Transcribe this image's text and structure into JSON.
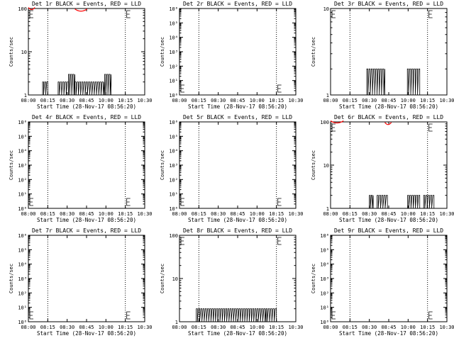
{
  "chart_data": [
    {
      "type": "line",
      "title": "Det 1r BLACK = Events, RED = LLD",
      "xlabel": "Start Time (28-Nov-17 08:56:20)",
      "ylabel": "Counts/sec",
      "y_scale": "log",
      "ylim": [
        1,
        100
      ],
      "y_ticks": [
        "1",
        "10",
        "100"
      ],
      "x_ticks": [
        "08:00",
        "08:15",
        "08:30",
        "08:45",
        "10:00",
        "10:15",
        "10:30"
      ],
      "vlines": [
        "08:15",
        "10:15"
      ],
      "series": [
        {
          "color": "#000000",
          "segments": [
            {
              "x": [
                "08:11",
                "08:15"
              ],
              "y": 2
            },
            {
              "x": [
                "08:23",
                "08:31"
              ],
              "y": 2
            },
            {
              "x": [
                "08:31",
                "08:36"
              ],
              "y": 3
            },
            {
              "x": [
                "08:36",
                "09:54"
              ],
              "y": 2
            },
            {
              "x": [
                "09:55",
                "10:04"
              ],
              "y": 3
            }
          ]
        },
        {
          "color": "#ff0000",
          "segments": [
            {
              "x": [
                "08:00",
                "08:05"
              ],
              "y": 98
            },
            {
              "x": [
                "08:36",
                "08:47"
              ],
              "y": 90
            }
          ]
        }
      ]
    },
    {
      "type": "line",
      "title": "Det 2r BLACK = Events, RED = LLD",
      "xlabel": "Start Time (28-Nov-17 08:56:20)",
      "ylabel": "Counts/sec",
      "y_scale": "log",
      "ylim": [
        1,
        1000000
      ],
      "y_ticks": [
        "10⁰",
        "10¹",
        "10²",
        "10³",
        "10⁴",
        "10⁵",
        "10⁶"
      ],
      "x_ticks": [
        "08:00",
        "08:15",
        "08:30",
        "08:45",
        "10:00",
        "10:15",
        "10:30"
      ],
      "vlines": [
        "08:15",
        "10:15"
      ],
      "series": []
    },
    {
      "type": "line",
      "title": "Det 3r BLACK = Events, RED = LLD",
      "xlabel": "Start Time (28-Nov-17 08:56:20)",
      "ylabel": "Counts/sec",
      "y_scale": "log",
      "ylim": [
        1,
        10
      ],
      "y_ticks": [
        "1",
        "10"
      ],
      "x_ticks": [
        "08:00",
        "08:15",
        "08:30",
        "08:45",
        "10:00",
        "10:15",
        "10:30"
      ],
      "vlines": [
        "08:15",
        "10:15"
      ],
      "series": [
        {
          "color": "#000000",
          "segments": [
            {
              "x": [
                "08:28",
                "08:42"
              ],
              "y": 2
            },
            {
              "x": [
                "09:57",
                "10:09"
              ],
              "y": 2
            }
          ]
        }
      ]
    },
    {
      "type": "line",
      "title": "Det 4r BLACK = Events, RED = LLD",
      "xlabel": "Start Time (28-Nov-17 08:56:20)",
      "ylabel": "Counts/sec",
      "y_scale": "log",
      "ylim": [
        1,
        1000000
      ],
      "y_ticks": [
        "10⁰",
        "10¹",
        "10²",
        "10³",
        "10⁴",
        "10⁵",
        "10⁶"
      ],
      "x_ticks": [
        "08:00",
        "08:15",
        "08:30",
        "08:45",
        "10:00",
        "10:15",
        "10:30"
      ],
      "vlines": [
        "08:15",
        "10:15"
      ],
      "series": []
    },
    {
      "type": "line",
      "title": "Det 5r BLACK = Events, RED = LLD",
      "xlabel": "Start Time (28-Nov-17 08:56:20)",
      "ylabel": "Counts/sec",
      "y_scale": "log",
      "ylim": [
        1,
        1000000
      ],
      "y_ticks": [
        "10⁰",
        "10¹",
        "10²",
        "10³",
        "10⁴",
        "10⁵",
        "10⁶"
      ],
      "x_ticks": [
        "08:00",
        "08:15",
        "08:30",
        "08:45",
        "10:00",
        "10:15",
        "10:30"
      ],
      "vlines": [
        "08:15",
        "10:15"
      ],
      "series": []
    },
    {
      "type": "line",
      "title": "Det 6r BLACK = Events, RED = LLD",
      "xlabel": "Start Time (28-Nov-17 08:56:20)",
      "ylabel": "Counts/sec",
      "y_scale": "log",
      "ylim": [
        1,
        100
      ],
      "y_ticks": [
        "1",
        "10",
        "100"
      ],
      "x_ticks": [
        "08:00",
        "08:15",
        "08:30",
        "08:45",
        "10:00",
        "10:15",
        "10:30"
      ],
      "vlines": [
        "08:15",
        "10:15"
      ],
      "series": [
        {
          "color": "#000000",
          "segments": [
            {
              "x": [
                "08:30",
                "08:33"
              ],
              "y": 2
            },
            {
              "x": [
                "08:36",
                "08:44"
              ],
              "y": 2
            },
            {
              "x": [
                "09:58",
                "10:09"
              ],
              "y": 2
            },
            {
              "x": [
                "10:12",
                "10:20"
              ],
              "y": 2
            }
          ]
        },
        {
          "color": "#ff0000",
          "segments": [
            {
              "x": [
                "08:00",
                "08:10"
              ],
              "y": 98
            },
            {
              "x": [
                "08:42",
                "08:55"
              ],
              "y": 90
            }
          ]
        }
      ]
    },
    {
      "type": "line",
      "title": "Det 7r BLACK = Events, RED = LLD",
      "xlabel": "Start Time (28-Nov-17 08:56:20)",
      "ylabel": "Counts/sec",
      "y_scale": "log",
      "ylim": [
        1,
        1000000
      ],
      "y_ticks": [
        "10⁰",
        "10¹",
        "10²",
        "10³",
        "10⁴",
        "10⁵",
        "10⁶"
      ],
      "x_ticks": [
        "08:00",
        "08:15",
        "08:30",
        "08:45",
        "10:00",
        "10:15",
        "10:30"
      ],
      "vlines": [
        "08:15",
        "10:15"
      ],
      "series": []
    },
    {
      "type": "line",
      "title": "Det 8r BLACK = Events, RED = LLD",
      "xlabel": "Start Time (28-Nov-17 08:56:20)",
      "ylabel": "Counts/sec",
      "y_scale": "log",
      "ylim": [
        1,
        100
      ],
      "y_ticks": [
        "1",
        "10",
        "100"
      ],
      "x_ticks": [
        "08:00",
        "08:15",
        "08:30",
        "08:45",
        "10:00",
        "10:15",
        "10:30"
      ],
      "vlines": [
        "08:15",
        "10:15"
      ],
      "series": [
        {
          "color": "#000000",
          "segments": [
            {
              "x": [
                "08:13",
                "10:07"
              ],
              "y": 2
            },
            {
              "x": [
                "10:07",
                "10:15"
              ],
              "y": 2
            }
          ]
        }
      ]
    },
    {
      "type": "line",
      "title": "Det 9r BLACK = Events, RED = LLD",
      "xlabel": "Start Time (28-Nov-17 08:56:20)",
      "ylabel": "Counts/sec",
      "y_scale": "log",
      "ylim": [
        1,
        1000000
      ],
      "y_ticks": [
        "10⁰",
        "10¹",
        "10²",
        "10³",
        "10⁴",
        "10⁵",
        "10⁶"
      ],
      "x_ticks": [
        "08:00",
        "08:15",
        "08:30",
        "08:45",
        "10:00",
        "10:15",
        "10:30"
      ],
      "vlines": [
        "08:15",
        "10:15"
      ],
      "series": []
    }
  ]
}
